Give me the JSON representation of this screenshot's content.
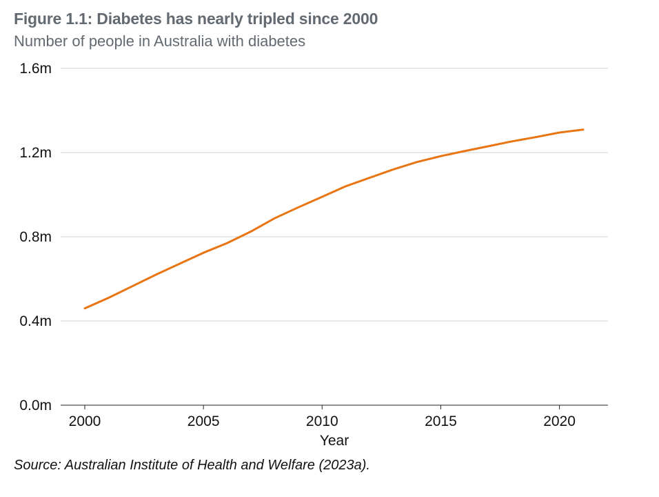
{
  "chart_data": {
    "type": "line",
    "title": "Figure 1.1: Diabetes has nearly tripled since 2000",
    "subtitle": "Number of people in Australia with diabetes",
    "xlabel": "Year",
    "ylabel": "",
    "source": "Source: Australian Institute of Health and Welfare (2023a).",
    "xlim": [
      2000,
      2021
    ],
    "ylim": [
      0,
      1.6
    ],
    "x_ticks": [
      2000,
      2005,
      2010,
      2015,
      2020
    ],
    "x_tick_labels": [
      "2000",
      "2005",
      "2010",
      "2015",
      "2020"
    ],
    "y_ticks": [
      0,
      0.4,
      0.8,
      1.2,
      1.6
    ],
    "y_tick_labels": [
      "0.0m",
      "0.4m",
      "0.8m",
      "1.2m",
      "1.6m"
    ],
    "grid": true,
    "line_color": "#E87511",
    "series": [
      {
        "x": [
          2000,
          2001,
          2002,
          2003,
          2004,
          2005,
          2006,
          2007,
          2008,
          2009,
          2010,
          2011,
          2012,
          2013,
          2014,
          2015,
          2016,
          2017,
          2018,
          2019,
          2020,
          2021
        ],
        "values": [
          0.46,
          0.51,
          0.565,
          0.62,
          0.672,
          0.724,
          0.77,
          0.825,
          0.888,
          0.94,
          0.99,
          1.04,
          1.08,
          1.12,
          1.155,
          1.183,
          1.207,
          1.23,
          1.253,
          1.273,
          1.295,
          1.309
        ]
      }
    ]
  }
}
